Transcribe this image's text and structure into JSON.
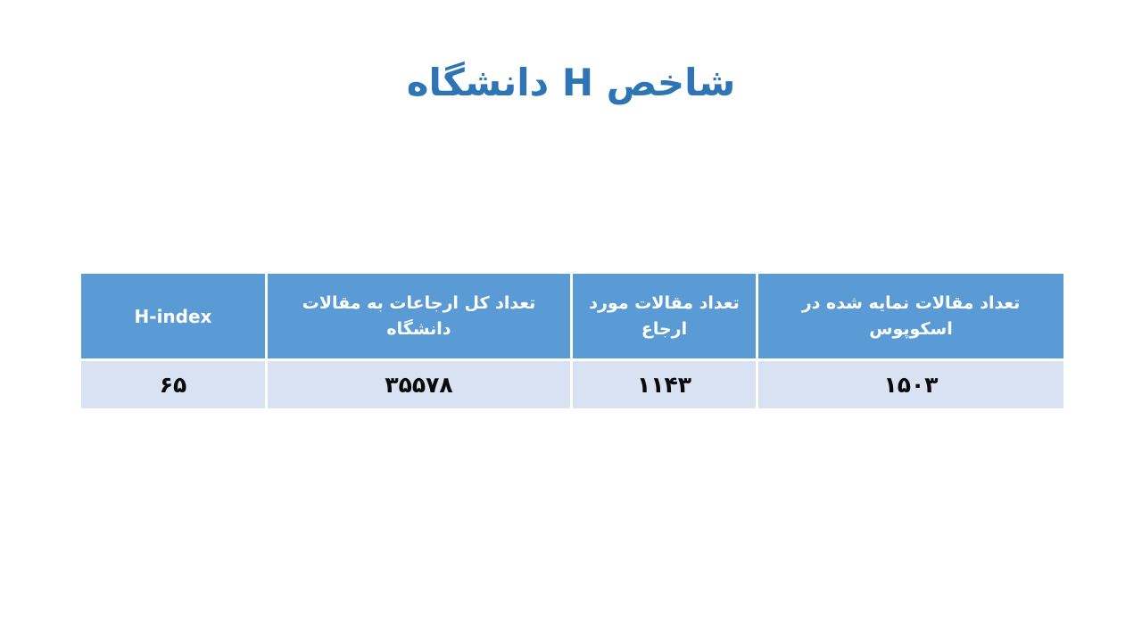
{
  "slide": {
    "title": "شاخص H دانشگاه"
  },
  "table": {
    "columns": [
      {
        "id": "scopus-indexed-articles",
        "header": "تعداد مقالات نمایه شده در اسکوپوس",
        "value": "۱۵۰۳",
        "value_latin": "1503"
      },
      {
        "id": "cited-articles",
        "header": "تعداد مقالات مورد ارجاع",
        "value": "۱۱۴۳",
        "value_latin": "1143"
      },
      {
        "id": "total-citations",
        "header": "تعداد کل ارجاعات به مقالات دانشگاه",
        "value": "۳۵۵۷۸",
        "value_latin": "35578"
      },
      {
        "id": "h-index",
        "header": "H-index",
        "value": "۶۵",
        "value_latin": "65"
      }
    ]
  },
  "colors": {
    "title_text": "#2E75B6",
    "header_bg": "#5B9BD5",
    "header_text": "#FFFFFF",
    "row_bg": "#D9E2F3",
    "value_text": "#0A0A0A",
    "grid_lines": "#FFFFFF",
    "background": "#FFFFFF"
  }
}
